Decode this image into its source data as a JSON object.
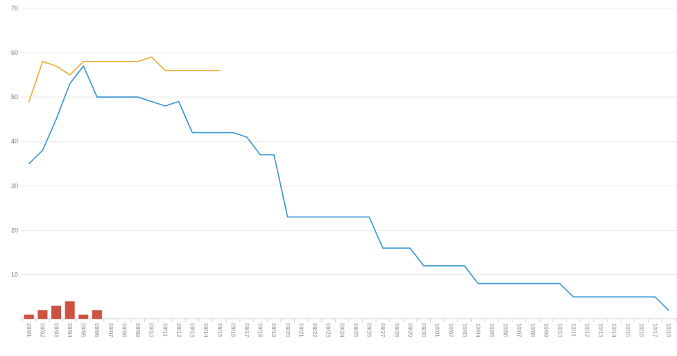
{
  "chart": {
    "background": "#ffffff"
  },
  "chart_data": {
    "type": "mixed",
    "title": "",
    "legend": "none",
    "grid": "horizontal-only",
    "categories": [
      "09/01",
      "09/02",
      "09/03",
      "09/04",
      "09/05",
      "09/06",
      "09/07",
      "09/08",
      "09/09",
      "09/10",
      "09/11",
      "09/12",
      "09/13",
      "09/14",
      "09/15",
      "09/16",
      "09/17",
      "09/18",
      "09/19",
      "09/20",
      "09/21",
      "09/22",
      "09/23",
      "09/24",
      "09/25",
      "09/26",
      "09/27",
      "09/28",
      "09/29",
      "09/30",
      "10/01",
      "10/02",
      "10/03",
      "10/04",
      "10/05",
      "10/06",
      "10/07",
      "10/08",
      "10/09",
      "10/10",
      "10/11",
      "10/12",
      "10/13",
      "10/14",
      "10/15",
      "10/16",
      "10/17",
      "10/18"
    ],
    "y_axis": {
      "ticks": [
        10,
        20,
        30,
        40,
        50,
        60,
        70
      ],
      "ylim": [
        0,
        70
      ]
    },
    "series": [
      {
        "name": "blue-line",
        "type": "line",
        "color": "#3e97d3",
        "values": [
          35,
          38,
          45,
          53,
          57,
          50,
          50,
          50,
          50,
          49,
          48,
          49,
          42,
          42,
          42,
          42,
          41,
          37,
          37,
          23,
          23,
          23,
          23,
          23,
          23,
          23,
          16,
          16,
          16,
          12,
          12,
          12,
          12,
          8,
          8,
          8,
          8,
          8,
          8,
          8,
          5,
          5,
          5,
          5,
          5,
          5,
          5,
          2
        ]
      },
      {
        "name": "orange-line",
        "type": "line",
        "color": "#f0ad33",
        "values": [
          49,
          58,
          57,
          55,
          58,
          58,
          58,
          58,
          58,
          59,
          56,
          56,
          56,
          56,
          56
        ]
      },
      {
        "name": "red-bars",
        "type": "bar",
        "color": "#cd5241",
        "values": [
          1,
          2,
          3,
          4,
          1,
          2
        ]
      }
    ],
    "colors": {
      "gridline": "#e8e8e8",
      "axis_line": "#cccccc",
      "tick_mark": "#cccccc",
      "y_label": "#777777",
      "x_label": "#888888"
    }
  }
}
